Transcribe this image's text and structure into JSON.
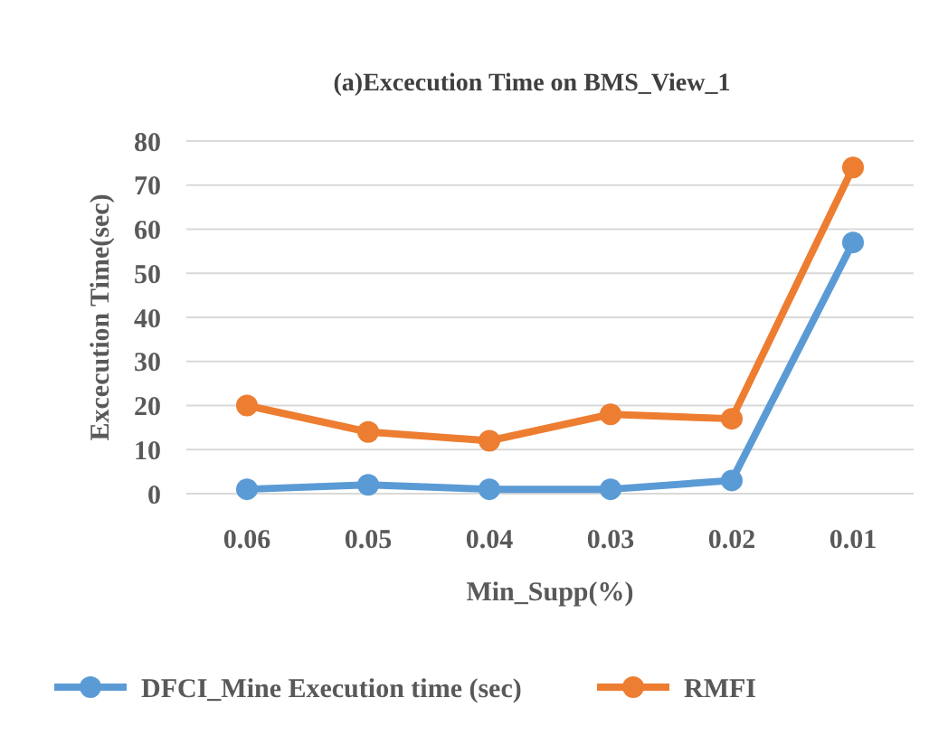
{
  "chart_data": {
    "type": "line",
    "title": "(a)Excecution Time on BMS_View_1",
    "xlabel": "Min_Supp(%)",
    "ylabel": "Excecution Time(sec)",
    "categories": [
      "0.06",
      "0.05",
      "0.04",
      "0.03",
      "0.02",
      "0.01"
    ],
    "series": [
      {
        "name": "DFCI_Mine Execution time (sec)",
        "color": "#5b9bd5",
        "values": [
          1,
          2,
          1,
          1,
          3,
          57
        ]
      },
      {
        "name": "RMFI",
        "color": "#ed7d31",
        "values": [
          20,
          14,
          12,
          18,
          17,
          74
        ]
      }
    ],
    "ylim": [
      0,
      80
    ],
    "yticks": [
      0,
      10,
      20,
      30,
      40,
      50,
      60,
      70,
      80
    ],
    "grid": "y",
    "legend": "bottom",
    "marker": "circle",
    "line_style": "solid"
  }
}
